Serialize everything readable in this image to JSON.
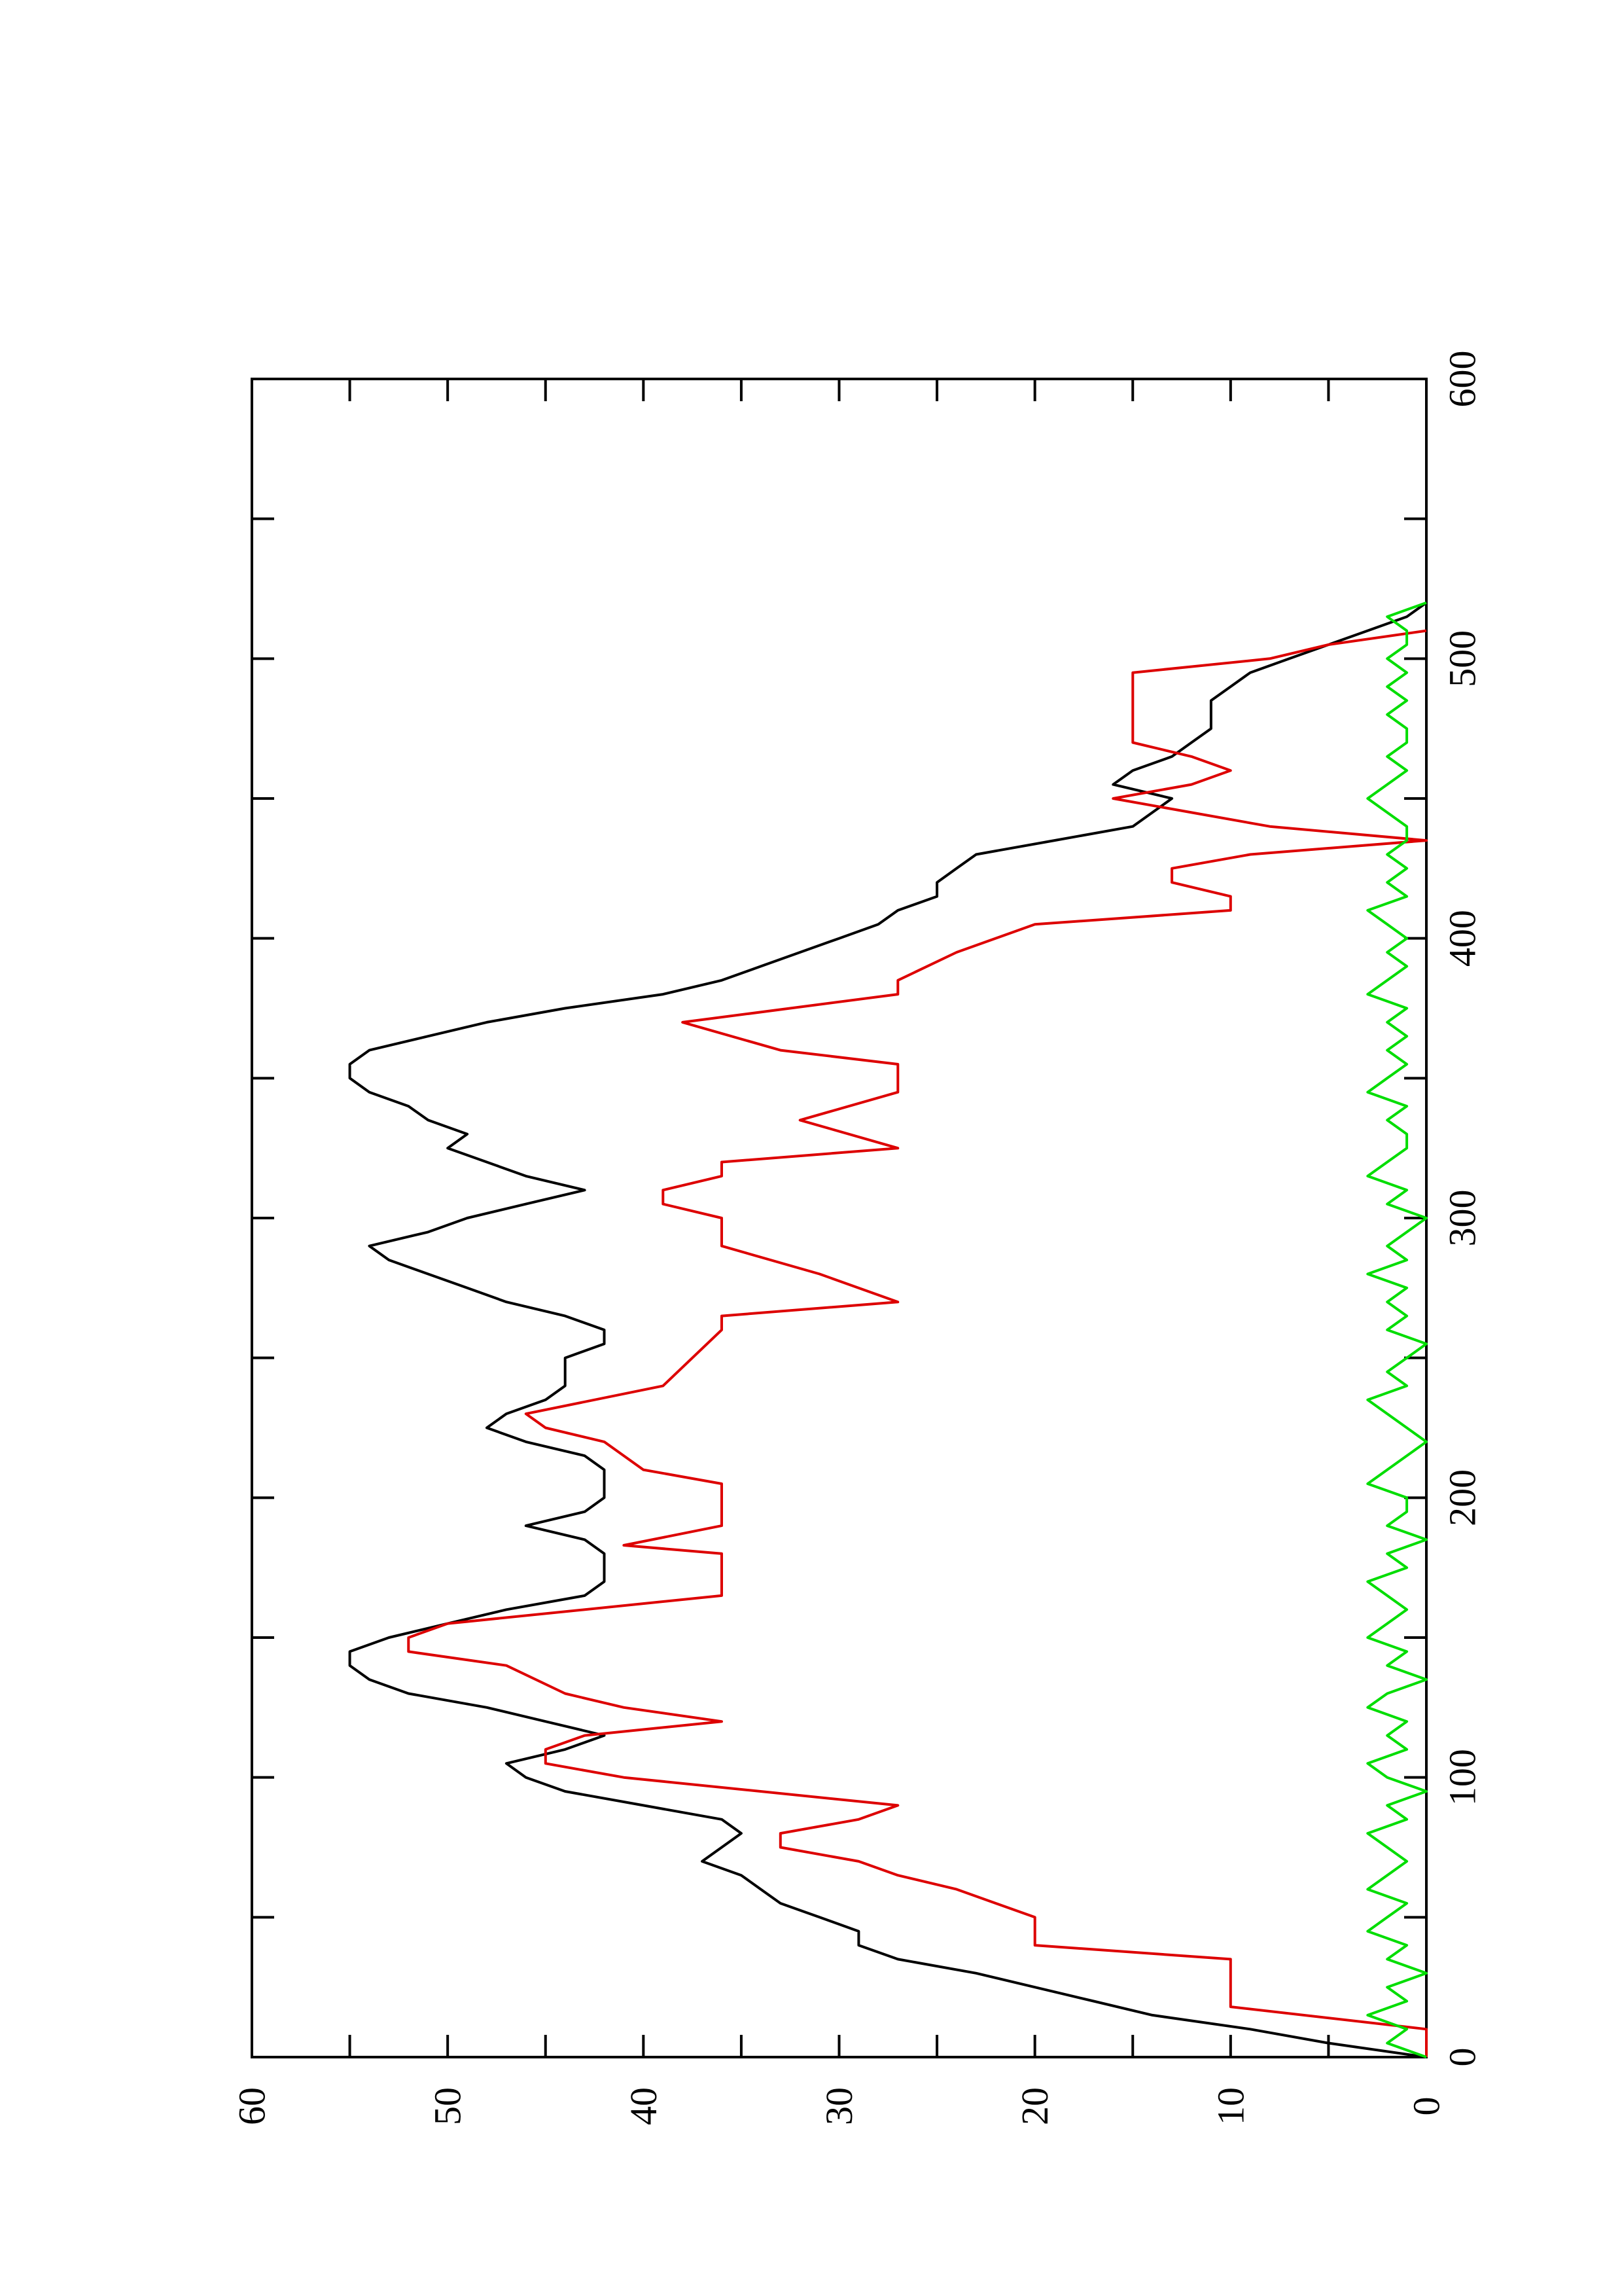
{
  "chart_data": {
    "type": "line",
    "orientation": "rotated-90-ccw",
    "title": "",
    "xlabel": "",
    "ylabel": "",
    "xlim": [
      0,
      600
    ],
    "ylim": [
      0,
      60
    ],
    "x_ticks": [
      "0",
      "100",
      "200",
      "300",
      "400",
      "500",
      "600"
    ],
    "y_ticks": [
      "0",
      "10",
      "20",
      "30",
      "40",
      "50",
      "60"
    ],
    "grid": false,
    "legend": "none",
    "series": [
      {
        "color": "#000000",
        "x": [
          0,
          5,
          10,
          15,
          20,
          25,
          30,
          35,
          40,
          45,
          50,
          55,
          60,
          65,
          70,
          75,
          80,
          85,
          90,
          95,
          100,
          105,
          110,
          115,
          120,
          125,
          130,
          135,
          140,
          145,
          150,
          155,
          160,
          165,
          170,
          175,
          180,
          185,
          190,
          195,
          200,
          205,
          210,
          215,
          220,
          225,
          230,
          235,
          240,
          245,
          250,
          255,
          260,
          265,
          270,
          275,
          280,
          285,
          290,
          295,
          300,
          305,
          310,
          315,
          320,
          325,
          330,
          335,
          340,
          345,
          350,
          355,
          360,
          365,
          370,
          375,
          380,
          385,
          390,
          395,
          400,
          405,
          410,
          415,
          420,
          425,
          430,
          435,
          440,
          445,
          450,
          455,
          460,
          465,
          470,
          475,
          480,
          485,
          490,
          495,
          500,
          505,
          510,
          515,
          520
        ],
        "y": [
          0,
          5,
          9,
          14,
          17,
          20,
          23,
          27,
          29,
          29,
          31,
          33,
          34,
          35,
          37,
          36,
          35,
          36,
          40,
          44,
          46,
          47,
          44,
          42,
          45,
          48,
          52,
          54,
          55,
          55,
          53,
          50,
          47,
          43,
          42,
          42,
          42,
          43,
          46,
          43,
          42,
          42,
          42,
          43,
          46,
          48,
          47,
          45,
          44,
          44,
          44,
          42,
          42,
          44,
          47,
          49,
          51,
          53,
          54,
          51,
          49,
          46,
          43,
          46,
          48,
          50,
          49,
          51,
          52,
          54,
          55,
          55,
          54,
          51,
          48,
          44,
          39,
          36,
          34,
          32,
          30,
          28,
          27,
          25,
          25,
          24,
          23,
          19,
          15,
          14,
          13,
          16,
          15,
          13,
          12,
          11,
          11,
          11,
          10,
          9,
          7,
          5,
          3,
          1,
          0
        ]
      },
      {
        "color": "#dd0000",
        "x": [
          0,
          10,
          18,
          35,
          40,
          50,
          60,
          65,
          70,
          75,
          80,
          85,
          90,
          100,
          105,
          110,
          115,
          120,
          125,
          130,
          140,
          145,
          150,
          155,
          165,
          180,
          183,
          190,
          205,
          210,
          220,
          225,
          230,
          240,
          260,
          265,
          270,
          280,
          290,
          300,
          305,
          310,
          315,
          320,
          325,
          335,
          345,
          355,
          360,
          370,
          380,
          385,
          395,
          405,
          410,
          415,
          420,
          425,
          430,
          435,
          440,
          445,
          450,
          455,
          460,
          465,
          470,
          475,
          480,
          490,
          495,
          500,
          505,
          510
        ],
        "y": [
          0,
          0,
          10,
          10,
          20,
          20,
          24,
          27,
          29,
          33,
          33,
          29,
          27,
          41,
          45,
          45,
          43,
          36,
          41,
          44,
          47,
          52,
          52,
          50,
          36,
          36,
          41,
          36,
          36,
          40,
          42,
          45,
          46,
          39,
          36,
          36,
          27,
          31,
          36,
          36,
          39,
          39,
          36,
          36,
          27,
          32,
          27,
          27,
          33,
          38,
          27,
          27,
          24,
          20,
          10,
          10,
          13,
          13,
          9,
          0,
          8,
          12,
          16,
          12,
          10,
          12,
          15,
          15,
          15,
          15,
          15,
          8,
          5,
          0
        ]
      },
      {
        "color": "#00dd00",
        "x": [
          0,
          5,
          10,
          15,
          20,
          25,
          30,
          35,
          40,
          45,
          50,
          55,
          60,
          65,
          70,
          75,
          80,
          85,
          90,
          95,
          100,
          105,
          110,
          115,
          120,
          125,
          130,
          135,
          140,
          145,
          150,
          155,
          160,
          165,
          170,
          175,
          180,
          185,
          190,
          195,
          200,
          205,
          210,
          215,
          220,
          225,
          230,
          235,
          240,
          245,
          250,
          255,
          260,
          265,
          270,
          275,
          280,
          285,
          290,
          295,
          300,
          305,
          310,
          315,
          320,
          325,
          330,
          335,
          340,
          345,
          350,
          355,
          360,
          365,
          370,
          375,
          380,
          385,
          390,
          395,
          400,
          405,
          410,
          415,
          420,
          425,
          430,
          435,
          440,
          445,
          450,
          455,
          460,
          465,
          470,
          475,
          480,
          485,
          490,
          495,
          500,
          505,
          510,
          515,
          520
        ],
        "y": [
          0,
          2,
          1,
          3,
          1,
          2,
          0,
          2,
          1,
          3,
          2,
          1,
          3,
          2,
          1,
          2,
          3,
          1,
          2,
          0,
          2,
          3,
          1,
          2,
          1,
          3,
          2,
          0,
          2,
          1,
          3,
          2,
          1,
          2,
          3,
          1,
          2,
          0,
          2,
          1,
          1,
          3,
          2,
          1,
          0,
          1,
          2,
          3,
          1,
          2,
          1,
          0,
          2,
          1,
          2,
          1,
          3,
          1,
          2,
          1,
          0,
          2,
          1,
          3,
          2,
          1,
          1,
          2,
          1,
          3,
          2,
          1,
          2,
          1,
          2,
          1,
          3,
          2,
          1,
          2,
          1,
          2,
          3,
          1,
          2,
          1,
          2,
          1,
          1,
          2,
          3,
          2,
          1,
          2,
          1,
          1,
          2,
          1,
          2,
          1,
          2,
          1,
          1,
          2,
          0
        ]
      }
    ]
  }
}
